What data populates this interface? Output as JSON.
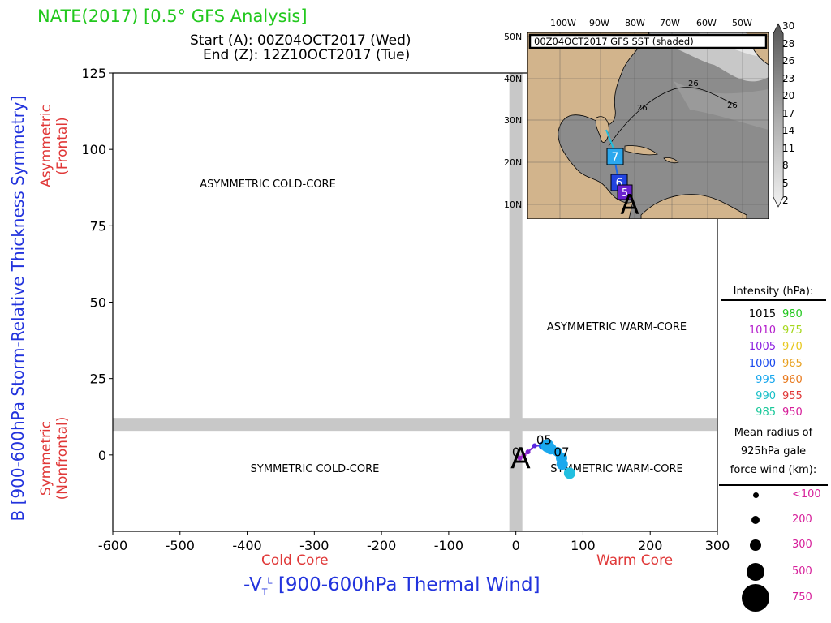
{
  "header": {
    "title": "NATE(2017) [0.5° GFS Analysis]",
    "start": "Start (A): 00Z04OCT2017 (Wed)",
    "end": "End (Z): 12Z10OCT2017 (Tue)"
  },
  "axes": {
    "ylabel": "B [900-600hPa Storm-Relative Thickness Symmetry]",
    "xlabel_main": "-V",
    "xlabel_sub": "T",
    "xlabel_sup": "L",
    "xlabel_rest": " [900-600hPa Thermal Wind]",
    "asym_label_1": "Asymmetric",
    "asym_label_2": "(Frontal)",
    "sym_label_1": "Symmetric",
    "sym_label_2": "(Nonfrontal)",
    "cold_core": "Cold Core",
    "warm_core": "Warm Core"
  },
  "chart_data": {
    "type": "scatter",
    "xlim": [
      -600,
      300
    ],
    "ylim": [
      -25,
      125
    ],
    "xticks": [
      -600,
      -500,
      -400,
      -300,
      -200,
      -100,
      0,
      100,
      200,
      300
    ],
    "yticks": [
      0,
      25,
      50,
      75,
      100,
      125
    ],
    "quadrants": {
      "asym_cold": "ASYMMETRIC COLD-CORE",
      "asym_warm": "ASYMMETRIC WARM-CORE",
      "sym_cold": "SYMMETRIC COLD-CORE",
      "sym_warm": "SYMMETRIC WARM-CORE"
    },
    "track": [
      {
        "x": 6,
        "y": -1,
        "color": "#9a22c8",
        "r": 3
      },
      {
        "x": 12,
        "y": 0,
        "color": "#9a22c8",
        "r": 3
      },
      {
        "x": 18,
        "y": 1,
        "color": "#7a22d0",
        "r": 3
      },
      {
        "x": 28,
        "y": 3,
        "color": "#5a28e0",
        "r": 3
      },
      {
        "x": 40,
        "y": 3,
        "color": "#1a6aee",
        "r": 5
      },
      {
        "x": 47,
        "y": 3,
        "color": "#1aa8ee",
        "r": 8
      },
      {
        "x": 52,
        "y": 2,
        "color": "#1aa8ee",
        "r": 7
      },
      {
        "x": 62,
        "y": 1,
        "color": "#1aa8ee",
        "r": 6
      },
      {
        "x": 68,
        "y": -1,
        "color": "#1aa8ee",
        "r": 7
      },
      {
        "x": 69,
        "y": -3,
        "color": "#1aa8ee",
        "r": 7
      },
      {
        "x": 80,
        "y": -6,
        "color": "#22bfe0",
        "r": 7
      }
    ],
    "annotations": [
      {
        "text": "A",
        "x": 7,
        "y": -1,
        "size": 36
      },
      {
        "text": "0",
        "x": 0,
        "y": 1,
        "size": 15
      },
      {
        "text": "05",
        "x": 42,
        "y": 5,
        "size": 15
      },
      {
        "text": "07",
        "x": 68,
        "y": 1,
        "size": 15
      }
    ]
  },
  "legend": {
    "header": "Intensity (hPa):",
    "rows": [
      [
        "1015",
        "980"
      ],
      [
        "1010",
        "975"
      ],
      [
        "1005",
        "970"
      ],
      [
        "1000",
        "965"
      ],
      [
        "995",
        "960"
      ],
      [
        "990",
        "955"
      ],
      [
        "985",
        "950"
      ]
    ],
    "colors_left": [
      "#000000",
      "#b41ecc",
      "#8a1ee0",
      "#1a4aee",
      "#1aa8ee",
      "#1ac0c8",
      "#1ac89a"
    ],
    "colors_right": [
      "#22c81e",
      "#a6d81e",
      "#e8c81e",
      "#e8a01e",
      "#e87a1e",
      "#e03838",
      "#d61f9a"
    ],
    "gale_1": "Mean radius of",
    "gale_2": "925hPa gale",
    "gale_3": "force wind (km):",
    "sizes": [
      "<100",
      "200",
      "300",
      "500",
      "750"
    ]
  },
  "inset": {
    "title": "00Z04OCT2017 GFS SST (shaded)",
    "lon_ticks": [
      "100W",
      "90W",
      "80W",
      "70W",
      "60W",
      "50W"
    ],
    "lat_ticks": [
      "50N",
      "40N",
      "30N",
      "20N",
      "10N"
    ],
    "contour_labels": [
      "26",
      "26",
      "26"
    ],
    "colorbar_ticks": [
      "30",
      "28",
      "26",
      "23",
      "20",
      "17",
      "14",
      "11",
      "8",
      "5",
      "2"
    ],
    "markers": [
      {
        "text": "7",
        "color": "#2ba8ee"
      },
      {
        "text": "6",
        "color": "#2244e0"
      },
      {
        "text": "5",
        "color": "#6a22d0"
      }
    ],
    "start_marker": "A"
  }
}
